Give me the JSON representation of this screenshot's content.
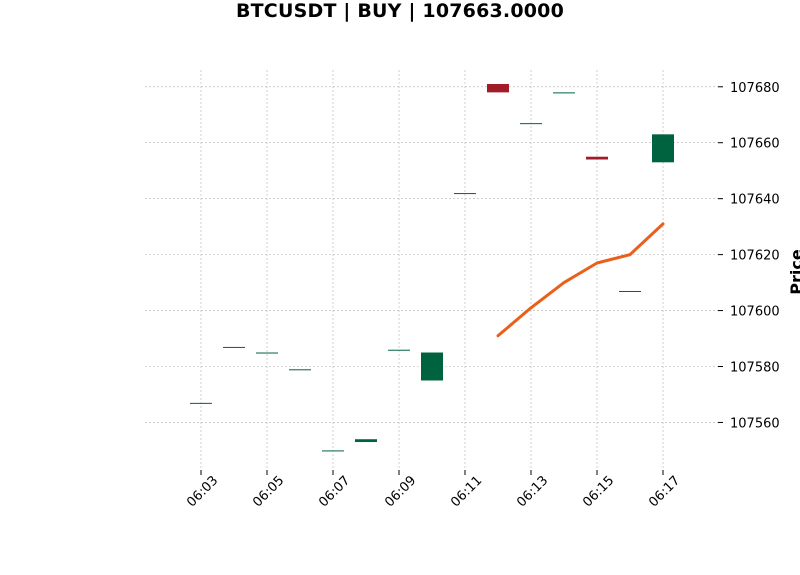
{
  "chart_data": {
    "type": "candlestick",
    "title": "BTCUSDT | BUY | 107663.0000",
    "ylabel": "Price",
    "ylim": [
      107543,
      107686
    ],
    "y_ticks": [
      107560,
      107580,
      107600,
      107620,
      107640,
      107660,
      107680
    ],
    "x_tick_labels": [
      "06:03",
      "06:05",
      "06:07",
      "06:09",
      "06:11",
      "06:13",
      "06:15",
      "06:17"
    ],
    "grid": true,
    "colors": {
      "up": "#006340",
      "down": "#a01c28",
      "line": "#e8601c",
      "grid": "#b0b0b0"
    },
    "candles": [
      {
        "time": "06:03",
        "open": 107567,
        "close": 107567
      },
      {
        "time": "06:04",
        "open": 107587,
        "close": 107587
      },
      {
        "time": "06:05",
        "open": 107585,
        "close": 107585
      },
      {
        "time": "06:06",
        "open": 107579,
        "close": 107579
      },
      {
        "time": "06:07",
        "open": 107550,
        "close": 107550
      },
      {
        "time": "06:08",
        "open": 107553,
        "close": 107554
      },
      {
        "time": "06:09",
        "open": 107586,
        "close": 107586
      },
      {
        "time": "06:10",
        "open": 107575,
        "close": 107585
      },
      {
        "time": "06:11",
        "open": 107642,
        "close": 107642
      },
      {
        "time": "06:12",
        "open": 107681,
        "close": 107678
      },
      {
        "time": "06:13",
        "open": 107667,
        "close": 107667
      },
      {
        "time": "06:14",
        "open": 107678,
        "close": 107678
      },
      {
        "time": "06:15",
        "open": 107655,
        "close": 107654
      },
      {
        "time": "06:16",
        "open": 107607,
        "close": 107607
      },
      {
        "time": "06:17",
        "open": 107653,
        "close": 107663
      }
    ],
    "line_series": [
      {
        "time": "06:12",
        "value": 107591
      },
      {
        "time": "06:13",
        "value": 107601
      },
      {
        "time": "06:14",
        "value": 107610
      },
      {
        "time": "06:15",
        "value": 107617
      },
      {
        "time": "06:16",
        "value": 107620
      },
      {
        "time": "06:17",
        "value": 107631
      }
    ]
  }
}
